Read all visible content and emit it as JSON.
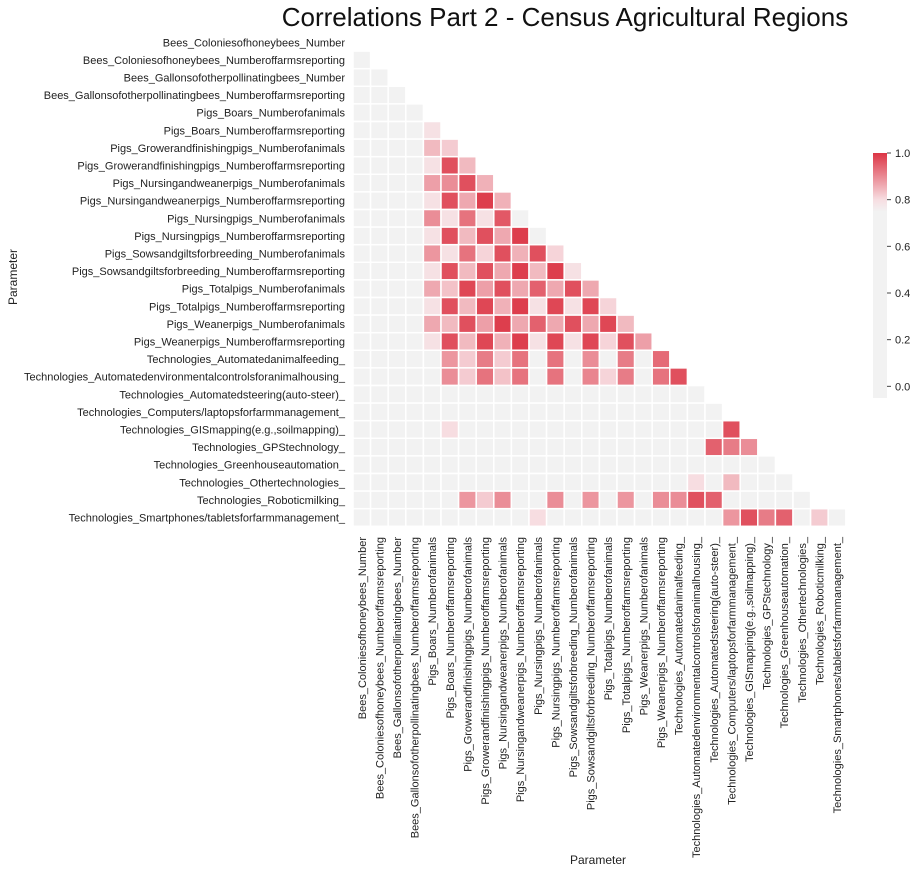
{
  "chart_data": {
    "type": "heatmap",
    "title": "Correlations Part 2 - Census Agricultural Regions",
    "xlabel": "Parameter",
    "ylabel": "Parameter",
    "layout": "lower-triangle",
    "parameters": [
      "Bees_Coloniesofhoneybees_Number",
      "Bees_Coloniesofhoneybees_Numberoffarmsreporting",
      "Bees_Gallonsofotherpollinatingbees_Number",
      "Bees_Gallonsofotherpollinatingbees_Numberoffarmsreporting",
      "Pigs_Boars_Numberofanimals",
      "Pigs_Boars_Numberoffarmsreporting",
      "Pigs_Growerandfinishingpigs_Numberofanimals",
      "Pigs_Growerandfinishingpigs_Numberoffarmsreporting",
      "Pigs_Nursingandweanerpigs_Numberofanimals",
      "Pigs_Nursingandweanerpigs_Numberoffarmsreporting",
      "Pigs_Nursingpigs_Numberofanimals",
      "Pigs_Nursingpigs_Numberoffarmsreporting",
      "Pigs_Sowsandgiltsforbreeding_Numberofanimals",
      "Pigs_Sowsandgiltsforbreeding_Numberoffarmsreporting",
      "Pigs_Totalpigs_Numberofanimals",
      "Pigs_Totalpigs_Numberoffarmsreporting",
      "Pigs_Weanerpigs_Numberofanimals",
      "Pigs_Weanerpigs_Numberoffarmsreporting",
      "Technologies_Automatedanimalfeeding_",
      "Technologies_Automatedenvironmentalcontrolsforanimalhousing_",
      "Technologies_Automatedsteering(auto-steer)_",
      "Technologies_Computers/laptopsforfarmmanagement_",
      "Technologies_GISmapping(e.g.,soilmapping)_",
      "Technologies_GPStechnology_",
      "Technologies_Greenhouseautomation_",
      "Technologies_Othertechnologies_",
      "Technologies_Roboticmilking_",
      "Technologies_Smartphones/tabletsforfarmmanagement_"
    ],
    "matrix": [
      [],
      [
        0.0
      ],
      [
        0.0,
        0.0
      ],
      [
        0.0,
        0.0,
        0.0
      ],
      [
        0.0,
        0.0,
        0.0,
        0.0
      ],
      [
        0.0,
        0.0,
        0.0,
        0.0,
        0.8
      ],
      [
        0.0,
        0.0,
        0.0,
        0.0,
        0.85,
        0.83
      ],
      [
        0.0,
        0.0,
        0.0,
        0.0,
        0.8,
        0.97,
        0.85
      ],
      [
        0.0,
        0.0,
        0.0,
        0.0,
        0.88,
        0.9,
        0.97,
        0.86
      ],
      [
        0.0,
        0.0,
        0.0,
        0.0,
        0.8,
        0.97,
        0.87,
        0.99,
        0.86
      ],
      [
        0.0,
        0.0,
        0.0,
        0.0,
        0.9,
        0.8,
        0.93,
        0.8,
        0.96,
        0.0
      ],
      [
        0.0,
        0.0,
        0.0,
        0.0,
        0.8,
        0.97,
        0.85,
        0.97,
        0.87,
        0.99,
        0.0
      ],
      [
        0.0,
        0.0,
        0.0,
        0.0,
        0.89,
        0.8,
        0.93,
        0.82,
        0.97,
        0.86,
        0.97,
        0.82
      ],
      [
        0.0,
        0.0,
        0.0,
        0.0,
        0.8,
        0.97,
        0.85,
        0.97,
        0.87,
        0.99,
        0.85,
        0.99,
        0.8
      ],
      [
        0.0,
        0.0,
        0.0,
        0.0,
        0.87,
        0.84,
        0.98,
        0.88,
        0.97,
        0.87,
        0.95,
        0.87,
        0.97,
        0.87
      ],
      [
        0.0,
        0.0,
        0.0,
        0.0,
        0.8,
        0.97,
        0.85,
        0.98,
        0.86,
        0.99,
        0.8,
        0.98,
        0.8,
        0.98,
        0.82
      ],
      [
        0.0,
        0.0,
        0.0,
        0.0,
        0.87,
        0.85,
        0.97,
        0.88,
        0.99,
        0.87,
        0.95,
        0.87,
        0.97,
        0.87,
        0.98,
        0.85
      ],
      [
        0.0,
        0.0,
        0.0,
        0.0,
        0.8,
        0.97,
        0.85,
        0.98,
        0.86,
        0.99,
        0.8,
        0.98,
        0.8,
        0.98,
        0.82,
        0.97,
        0.88
      ],
      [
        0.0,
        0.0,
        0.0,
        0.0,
        0.0,
        0.89,
        0.83,
        0.92,
        0.83,
        0.93,
        0.0,
        0.93,
        0.0,
        0.9,
        0.0,
        0.92,
        0.0,
        0.94
      ],
      [
        0.0,
        0.0,
        0.0,
        0.0,
        0.0,
        0.9,
        0.83,
        0.93,
        0.84,
        0.93,
        0.0,
        0.93,
        0.0,
        0.91,
        0.82,
        0.92,
        0.0,
        0.93,
        0.97
      ],
      [
        0.0,
        0.0,
        0.0,
        0.0,
        0.0,
        0.0,
        0.0,
        0.0,
        0.0,
        0.0,
        0.0,
        0.0,
        0.0,
        0.0,
        0.0,
        0.0,
        0.0,
        0.0,
        0.0,
        0.0
      ],
      [
        0.0,
        0.0,
        0.0,
        0.0,
        0.0,
        0.0,
        0.0,
        0.0,
        0.0,
        0.0,
        0.0,
        0.0,
        0.0,
        0.0,
        0.0,
        0.0,
        0.0,
        0.0,
        0.0,
        0.0,
        0.0
      ],
      [
        0.0,
        0.0,
        0.0,
        0.0,
        0.0,
        0.81,
        0.0,
        0.0,
        0.0,
        0.0,
        0.0,
        0.0,
        0.0,
        0.0,
        0.0,
        0.0,
        0.0,
        0.0,
        0.0,
        0.0,
        0.0,
        0.97
      ],
      [
        0.0,
        0.0,
        0.0,
        0.0,
        0.0,
        0.0,
        0.0,
        0.0,
        0.0,
        0.0,
        0.0,
        0.0,
        0.0,
        0.0,
        0.0,
        0.0,
        0.0,
        0.0,
        0.0,
        0.0,
        0.95,
        0.92,
        0.9
      ],
      [
        0.0,
        0.0,
        0.0,
        0.0,
        0.0,
        0.0,
        0.0,
        0.0,
        0.0,
        0.0,
        0.0,
        0.0,
        0.0,
        0.0,
        0.0,
        0.0,
        0.0,
        0.0,
        0.0,
        0.0,
        0.0,
        0.0,
        0.0,
        0.0
      ],
      [
        0.0,
        0.0,
        0.0,
        0.0,
        0.0,
        0.0,
        0.0,
        0.0,
        0.0,
        0.0,
        0.0,
        0.0,
        0.0,
        0.0,
        0.0,
        0.0,
        0.0,
        0.0,
        0.0,
        0.81,
        0.0,
        0.85,
        0.0,
        0.0,
        0.0
      ],
      [
        0.0,
        0.0,
        0.0,
        0.0,
        0.0,
        0.0,
        0.89,
        0.83,
        0.9,
        0.0,
        0.0,
        0.9,
        0.0,
        0.89,
        0.0,
        0.89,
        0.0,
        0.9,
        0.9,
        0.97,
        0.95,
        0.0,
        0.0,
        0.0,
        0.0,
        0.0
      ],
      [
        0.0,
        0.0,
        0.0,
        0.0,
        0.0,
        0.0,
        0.0,
        0.0,
        0.0,
        0.0,
        0.81,
        0.0,
        0.0,
        0.0,
        0.0,
        0.0,
        0.0,
        0.0,
        0.0,
        0.0,
        0.0,
        0.89,
        0.97,
        0.92,
        0.95,
        0.0,
        0.83,
        0.0
      ]
    ],
    "colorbar": {
      "vmin": -0.05,
      "vmax": 1.0,
      "ticks": [
        0.0,
        0.2,
        0.4,
        0.6,
        0.8,
        1.0
      ],
      "tick_labels": [
        "0.0",
        "0.2",
        "0.4",
        "0.6",
        "0.8",
        "1.0"
      ],
      "colors": {
        "neutral": "#f2f2f2",
        "high": "#dc3545"
      }
    }
  }
}
